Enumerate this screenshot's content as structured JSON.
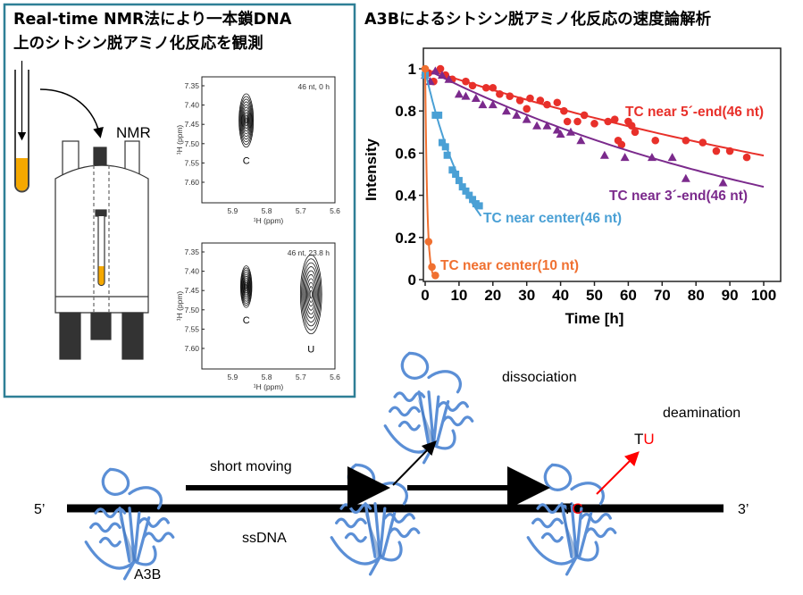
{
  "left_panel": {
    "title_line1": "Real-time NMR法により一本鎖DNA",
    "title_line2": "上のシトシン脱アミノ化反応を観測",
    "instrument_label": "NMR",
    "border_color": "#2e7f96",
    "sample_color": "#f5a800",
    "spectrum_top": {
      "annotation": "46 nt, 0 h",
      "y_ticks": [
        "7.35",
        "7.40",
        "7.45",
        "7.50",
        "7.55",
        "7.60"
      ],
      "x_ticks": [
        "5.9",
        "5.8",
        "5.7",
        "5.6"
      ],
      "xlabel": "¹H (ppm)",
      "ylabel": "¹H (ppm)",
      "peaks": [
        {
          "label": "C",
          "x_ppm": 5.86,
          "y_ppm": 7.44
        }
      ]
    },
    "spectrum_bottom": {
      "annotation": "46 nt, 23.8 h",
      "y_ticks": [
        "7.35",
        "7.40",
        "7.45",
        "7.50",
        "7.55",
        "7.60"
      ],
      "x_ticks": [
        "5.9",
        "5.8",
        "5.7",
        "5.6"
      ],
      "xlabel": "¹H (ppm)",
      "ylabel": "¹H (ppm)",
      "peaks": [
        {
          "label": "C",
          "x_ppm": 5.86,
          "y_ppm": 7.44
        },
        {
          "label": "U",
          "x_ppm": 5.67,
          "y_ppm": 7.46
        }
      ]
    }
  },
  "right_panel": {
    "title": "A3Bによるシトシン脱アミノ化反応の速度論解析"
  },
  "chart_data": {
    "type": "scatter",
    "xlabel": "Time [h]",
    "ylabel": "Intensity",
    "xlim": [
      0,
      100
    ],
    "ylim": [
      0,
      1.05
    ],
    "x_ticks": [
      "0",
      "10",
      "20",
      "30",
      "40",
      "50",
      "60",
      "70",
      "80",
      "90",
      "100"
    ],
    "y_ticks": [
      "0",
      "0.2",
      "0.4",
      "0.6",
      "0.8",
      "1"
    ],
    "grid": false,
    "series": [
      {
        "name": "TC near 5´-end(46 nt)",
        "color": "#e8302a",
        "marker": "circle",
        "x": [
          0,
          1,
          2.5,
          4.5,
          6,
          8,
          12,
          14,
          18,
          20,
          22,
          25,
          28,
          30,
          31,
          34,
          36,
          39,
          41,
          42,
          45,
          47,
          50,
          54,
          56,
          57,
          58,
          60,
          61,
          62,
          68,
          77,
          82,
          86,
          90,
          95
        ],
        "y": [
          0.97,
          0.98,
          0.94,
          1.0,
          0.97,
          0.95,
          0.94,
          0.92,
          0.91,
          0.91,
          0.88,
          0.87,
          0.85,
          0.81,
          0.86,
          0.85,
          0.83,
          0.84,
          0.8,
          0.75,
          0.75,
          0.78,
          0.74,
          0.75,
          0.76,
          0.66,
          0.64,
          0.75,
          0.73,
          0.7,
          0.66,
          0.66,
          0.65,
          0.61,
          0.61,
          0.58
        ]
      },
      {
        "name": "TC near 3´-end(46 nt)",
        "color": "#7b2a8c",
        "marker": "triangle",
        "x": [
          0,
          1.5,
          3,
          5,
          7,
          10,
          12,
          15,
          17,
          20,
          24,
          27,
          30,
          33,
          36,
          39,
          40,
          43,
          46,
          53,
          59,
          67,
          73,
          77,
          88
        ],
        "y": [
          0.97,
          0.94,
          0.99,
          0.97,
          0.95,
          0.88,
          0.87,
          0.86,
          0.83,
          0.83,
          0.8,
          0.78,
          0.76,
          0.73,
          0.73,
          0.71,
          0.69,
          0.7,
          0.66,
          0.59,
          0.58,
          0.58,
          0.58,
          0.48,
          0.46
        ]
      },
      {
        "name": "TC near center(46 nt)",
        "color": "#4aa0d5",
        "marker": "square",
        "x": [
          0,
          3,
          4,
          5,
          6,
          6.5,
          8,
          9,
          10,
          11,
          12,
          13,
          14,
          15,
          16
        ],
        "y": [
          0.97,
          0.78,
          0.78,
          0.65,
          0.63,
          0.59,
          0.52,
          0.5,
          0.47,
          0.44,
          0.42,
          0.4,
          0.38,
          0.36,
          0.35
        ]
      },
      {
        "name": "TC near center(10 nt)",
        "color": "#f07030",
        "marker": "circle",
        "x": [
          0,
          1,
          2,
          3
        ],
        "y": [
          1.0,
          0.18,
          0.06,
          0.02
        ]
      }
    ]
  },
  "scheme": {
    "five_prime": "5’",
    "three_prime": "3’",
    "short_moving": "short moving",
    "ssdna": "ssDNA",
    "enzyme": "A3B",
    "dissociation": "dissociation",
    "deamination": "deamination",
    "tc_t": "T",
    "tc_c": "C",
    "tu_t": "T",
    "tu_u": "U",
    "protein_color": "#5b8fd6",
    "highlight_color": "#ff0000"
  }
}
